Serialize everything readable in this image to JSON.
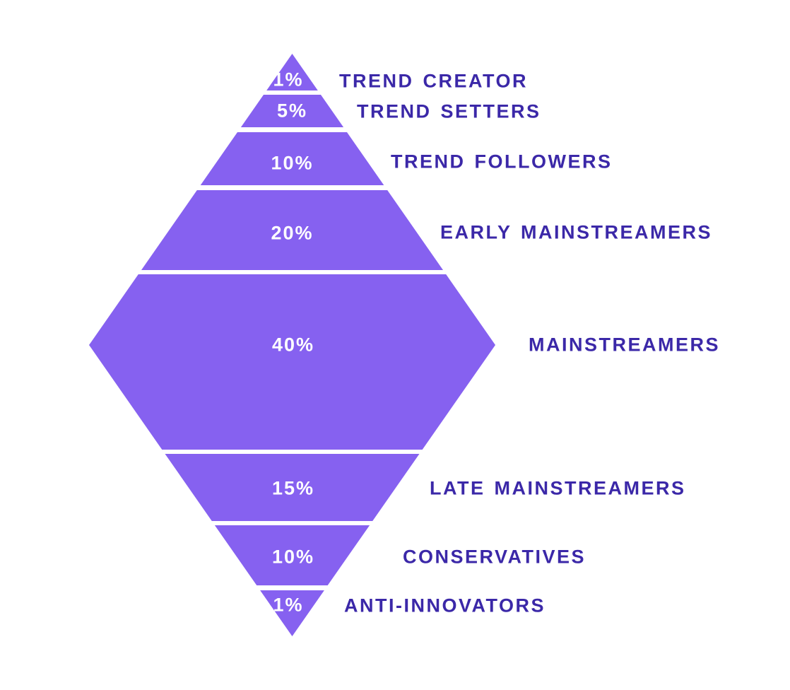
{
  "chart_data": {
    "type": "pyramid",
    "title": "",
    "categories": [
      "TREND CREATOR",
      "TREND SETTERS",
      "TREND FOLLOWERS",
      "EARLY MAINSTREAMERS",
      "MAINSTREAMERS",
      "LATE MAINSTREAMERS",
      "CONSERVATIVES",
      "ANTI-INNOVATORS"
    ],
    "values": [
      1,
      5,
      10,
      20,
      40,
      15,
      10,
      1
    ],
    "unit": "%",
    "layout_hint": "diamond / double-pyramid, widest segment (40% MAINSTREAMERS) in the middle, labels right-aligned beside each band, white gaps between bands"
  },
  "segments": [
    {
      "pct": "1%",
      "label": "TREND CREATOR"
    },
    {
      "pct": "5%",
      "label": "TREND SETTERS"
    },
    {
      "pct": "10%",
      "label": "TREND FOLLOWERS"
    },
    {
      "pct": "20%",
      "label": "EARLY MAINSTREAMERS"
    },
    {
      "pct": "40%",
      "label": "MAINSTREAMERS"
    },
    {
      "pct": "15%",
      "label": "LATE MAINSTREAMERS"
    },
    {
      "pct": "10%",
      "label": "CONSERVATIVES"
    },
    {
      "pct": "1%",
      "label": "ANTI-INNOVATORS"
    }
  ],
  "colors": {
    "segment_fill": "#8661F0",
    "label_text": "#3B28A8",
    "pct_text": "#FFFFFF",
    "background": "#FFFFFF"
  }
}
